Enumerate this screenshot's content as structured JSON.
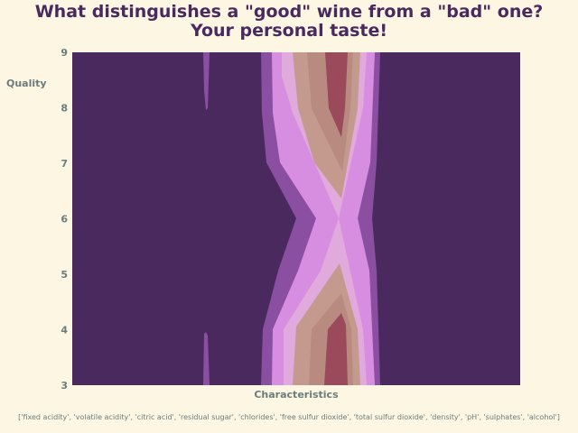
{
  "chart_data": {
    "type": "heatmap",
    "title": "What distinguishes a \"good\" wine from a \"bad\" one?",
    "subtitle": "Your personal taste!",
    "xlabel": "Characteristics",
    "ylabel": "Quality",
    "ylim": [
      3,
      9
    ],
    "yticks": [
      "3",
      "4",
      "5",
      "6",
      "7",
      "8",
      "9"
    ],
    "x_categories_label": "['fixed acidity', 'volatile acidity', 'citric acid', 'residual sugar', 'chlorides', 'free sulfur dioxide', 'total sulfur dioxide', 'density', 'pH', 'sulphates', 'alcohol']",
    "colors": [
      "#4a2a5e",
      "#8a4fa0",
      "#d88ee0",
      "#e0aadc",
      "#c49a8e",
      "#b88a80",
      "#9a4a5a"
    ],
    "grid": false,
    "legend": "none"
  }
}
